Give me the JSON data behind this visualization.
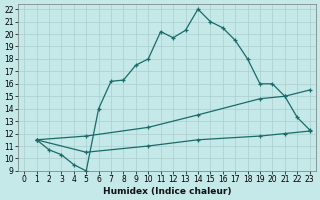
{
  "xlabel": "Humidex (Indice chaleur)",
  "xlim": [
    -0.5,
    23.5
  ],
  "ylim": [
    9,
    22.4
  ],
  "xticks": [
    0,
    1,
    2,
    3,
    4,
    5,
    6,
    7,
    8,
    9,
    10,
    11,
    12,
    13,
    14,
    15,
    16,
    17,
    18,
    19,
    20,
    21,
    22,
    23
  ],
  "yticks": [
    9,
    10,
    11,
    12,
    13,
    14,
    15,
    16,
    17,
    18,
    19,
    20,
    21,
    22
  ],
  "bg_color": "#c5e8e8",
  "line_color": "#1a6b6b",
  "grid_color": "#aacfcf",
  "line1_x": [
    1,
    2,
    3,
    4,
    5,
    6,
    7,
    8,
    9,
    10,
    11,
    12,
    13,
    14,
    15,
    16,
    17,
    18,
    19,
    20,
    21,
    22,
    23
  ],
  "line1_y": [
    11.5,
    10.7,
    10.3,
    9.5,
    9.0,
    14.0,
    16.2,
    16.3,
    17.5,
    18.0,
    20.2,
    19.7,
    20.3,
    22.0,
    21.0,
    20.5,
    19.5,
    18.0,
    16.0,
    16.0,
    15.0,
    13.3,
    12.3
  ],
  "line2_x": [
    1,
    5,
    10,
    14,
    19,
    21,
    23
  ],
  "line2_y": [
    11.5,
    11.8,
    12.5,
    13.5,
    14.8,
    15.0,
    15.5
  ],
  "line3_x": [
    1,
    5,
    10,
    14,
    19,
    21,
    23
  ],
  "line3_y": [
    11.5,
    10.5,
    11.0,
    11.5,
    11.8,
    12.0,
    12.2
  ],
  "tick_fontsize": 5.5,
  "xlabel_fontsize": 6.5
}
